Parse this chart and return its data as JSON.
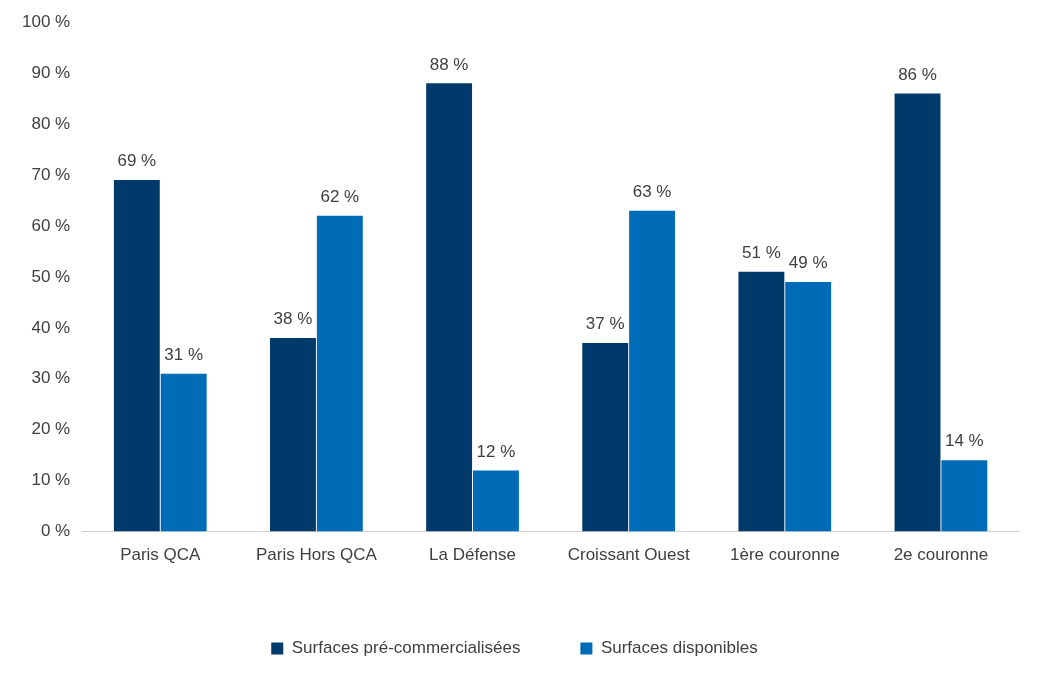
{
  "chart_data": {
    "type": "bar",
    "categories": [
      "Paris QCA",
      "Paris Hors QCA",
      "La Défense",
      "Croissant Ouest",
      "1ère couronne",
      "2e couronne"
    ],
    "series": [
      {
        "name": "Surfaces pré-commercialisées",
        "color": "#003a6b",
        "values": [
          69,
          38,
          88,
          37,
          51,
          86
        ],
        "value_labels": [
          "69 %",
          "38 %",
          "88 %",
          "37 %",
          "51 %",
          "86 %"
        ]
      },
      {
        "name": "Surfaces disponibles",
        "color": "#006bb6",
        "values": [
          31,
          62,
          12,
          63,
          49,
          14
        ],
        "value_labels": [
          "31 %",
          "62 %",
          "12 %",
          "63 %",
          "49 %",
          "14 %"
        ]
      }
    ],
    "ylim": [
      0,
      100
    ],
    "yticks": [
      {
        "value": 0,
        "label": "0 %"
      },
      {
        "value": 10,
        "label": "10 %"
      },
      {
        "value": 20,
        "label": "20 %"
      },
      {
        "value": 30,
        "label": "30 %"
      },
      {
        "value": 40,
        "label": "40 %"
      },
      {
        "value": 50,
        "label": "50 %"
      },
      {
        "value": 60,
        "label": "60 %"
      },
      {
        "value": 70,
        "label": "70 %"
      },
      {
        "value": 80,
        "label": "80 %"
      },
      {
        "value": 90,
        "label": "90 %"
      },
      {
        "value": 100,
        "label": "100 %"
      }
    ],
    "grid": false,
    "legend": "bottom"
  }
}
